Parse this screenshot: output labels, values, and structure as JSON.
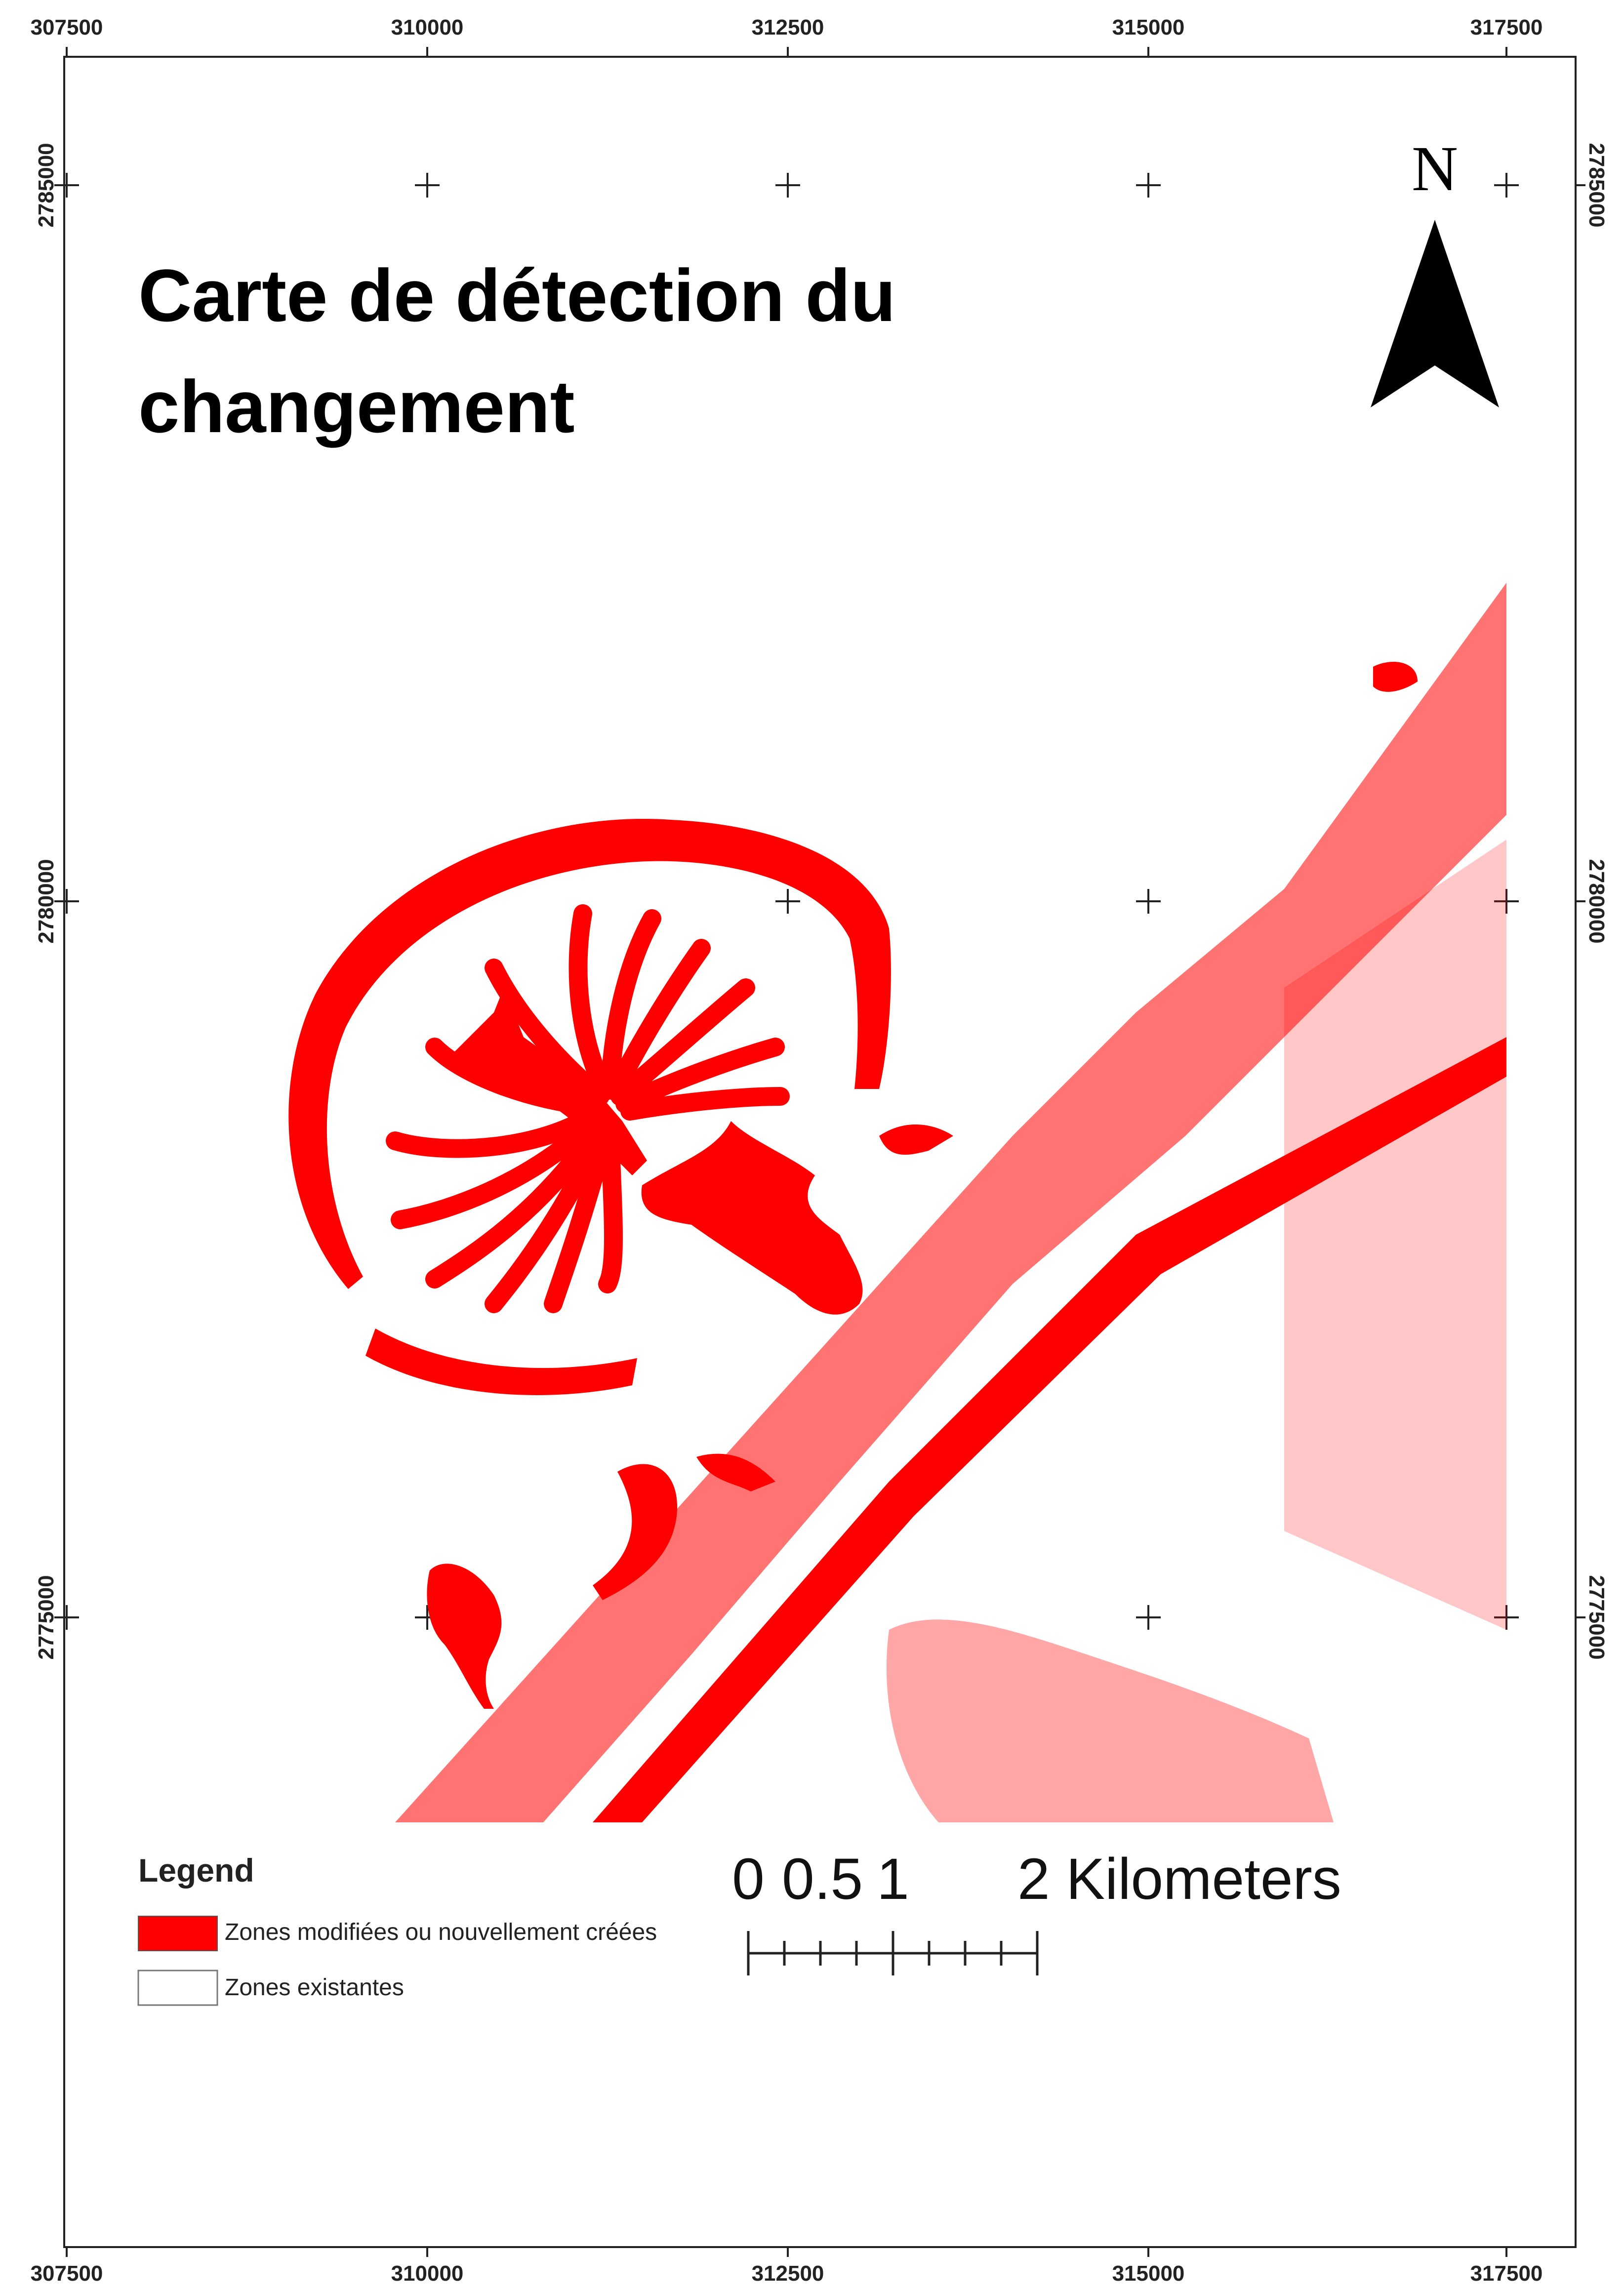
{
  "map": {
    "title_line1": "Carte de détection du",
    "title_line2": "changement",
    "north_label": "N",
    "change_color": "#ff0000",
    "frame_color": "#000000",
    "grid_marker": "plus-crosshair"
  },
  "axes": {
    "easting_labels": [
      "307500",
      "310000",
      "312500",
      "315000",
      "317500"
    ],
    "northing_labels": [
      "2785000",
      "2780000",
      "2775000"
    ]
  },
  "legend": {
    "title": "Legend",
    "items": [
      {
        "label": "Zones modifiées ou nouvellement créées",
        "color": "#ff0000"
      },
      {
        "label": "Zones existantes",
        "color": "#ffffff"
      }
    ]
  },
  "scale_bar": {
    "labels": [
      "0",
      "0.5",
      "1",
      "2 Kilometers"
    ]
  }
}
